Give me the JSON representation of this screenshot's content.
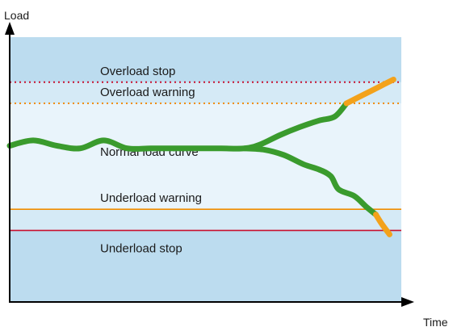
{
  "chart_data": {
    "type": "line",
    "title": "",
    "xlabel": "Time",
    "ylabel": "Load",
    "xlim": [
      0,
      10
    ],
    "ylim": [
      0,
      10
    ],
    "grid": false,
    "thresholds": [
      {
        "name": "Overload stop",
        "value": 8.3,
        "style": "dotted",
        "color": "#c8102e"
      },
      {
        "name": "Overload warning",
        "value": 7.5,
        "style": "dotted",
        "color": "#f08c00"
      },
      {
        "name": "Underload warning",
        "value": 3.5,
        "style": "solid",
        "color": "#f08c00"
      },
      {
        "name": "Underload stop",
        "value": 2.7,
        "style": "solid",
        "color": "#c8102e"
      }
    ],
    "curve_label": "Normal load curve",
    "series": [
      {
        "name": "",
        "role": "overload-trend",
        "x": [
          0,
          0.6,
          1.2,
          1.8,
          2.4,
          3.0,
          3.6,
          4.2,
          4.8,
          5.4,
          6.0,
          6.4,
          6.9,
          7.4,
          7.9,
          8.3,
          8.6,
          9.0,
          9.4,
          9.8
        ],
        "values": [
          5.9,
          6.1,
          5.9,
          5.8,
          6.1,
          5.8,
          5.8,
          5.8,
          5.8,
          5.8,
          5.8,
          5.95,
          6.3,
          6.6,
          6.85,
          7.0,
          7.5,
          7.8,
          8.1,
          8.4
        ]
      },
      {
        "name": "",
        "role": "underload-trend",
        "x": [
          6.0,
          6.5,
          7.0,
          7.5,
          7.9,
          8.2,
          8.4,
          8.8,
          9.1,
          9.35,
          9.5,
          9.7
        ],
        "values": [
          5.8,
          5.75,
          5.55,
          5.2,
          5.0,
          4.75,
          4.25,
          4.0,
          3.6,
          3.3,
          2.95,
          2.55
        ]
      }
    ],
    "segment_colors": {
      "normal": "#3a9b2d",
      "warning": "#f3a21b",
      "stop": "#d7162f"
    }
  },
  "colors": {
    "band_outer": "#bcdcef",
    "band_warning": "#d5eaf6",
    "band_normal": "#e9f4fb",
    "axis": "#000000"
  }
}
